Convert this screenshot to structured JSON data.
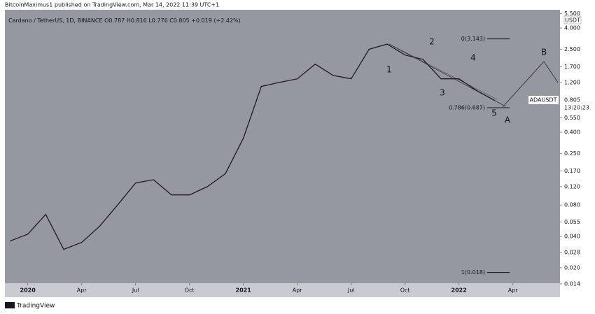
{
  "header": {
    "published": "BitcoinMaximus1 published on TradingView.com, Mar 14, 2022 11:39 UTC+1",
    "footer": "TradingView"
  },
  "chart_data": {
    "type": "line",
    "symbol": "Cardano / TetherUS, 1D, BINANCE",
    "ohlc": [
      {
        "key": "O",
        "value": "0.787"
      },
      {
        "key": "H",
        "value": "0.816"
      },
      {
        "key": "L",
        "value": "0.776"
      },
      {
        "key": "C",
        "value": "0.805"
      }
    ],
    "change": "+0.019 (+2.42%)",
    "currency": "USDT",
    "price_tag": {
      "name": "ADAUSDT",
      "value": "0.805",
      "countdown": "13:20:23"
    },
    "log_scale": true,
    "color": "#1c1c1e",
    "x": [
      "2019-12",
      "2020-01",
      "2020-02",
      "2020-03",
      "2020-04",
      "2020-05",
      "2020-06",
      "2020-07",
      "2020-08",
      "2020-09",
      "2020-10",
      "2020-11",
      "2020-12",
      "2021-01",
      "2021-02",
      "2021-03",
      "2021-04",
      "2021-05",
      "2021-06",
      "2021-07",
      "2021-08",
      "2021-09",
      "2021-10",
      "2021-11",
      "2021-12",
      "2022-01",
      "2022-02",
      "2022-03"
    ],
    "values": [
      0.036,
      0.042,
      0.065,
      0.03,
      0.035,
      0.05,
      0.08,
      0.13,
      0.14,
      0.1,
      0.1,
      0.12,
      0.16,
      0.35,
      1.1,
      1.2,
      1.3,
      1.8,
      1.4,
      1.3,
      2.5,
      2.8,
      2.2,
      2.0,
      1.3,
      1.3,
      1.0,
      0.805
    ],
    "xlim": [
      "2019-12",
      "2022-06"
    ],
    "xticks": [
      {
        "value": "2020-01",
        "label": "2020"
      },
      {
        "value": "2020-04",
        "label": "Apr"
      },
      {
        "value": "2020-07",
        "label": "Jul"
      },
      {
        "value": "2020-10",
        "label": "Oct"
      },
      {
        "value": "2021-01",
        "label": "2021"
      },
      {
        "value": "2021-04",
        "label": "Apr"
      },
      {
        "value": "2021-07",
        "label": "Jul"
      },
      {
        "value": "2021-10",
        "label": "Oct"
      },
      {
        "value": "2022-01",
        "label": "2022"
      },
      {
        "value": "2022-04",
        "label": "Apr"
      }
    ],
    "ylim": [
      0.0142,
      5.98
    ],
    "yticks": [
      {
        "value": 5.5,
        "label": "5.500"
      },
      {
        "value": 4,
        "label": "4.000"
      },
      {
        "value": 2.5,
        "label": "2.500"
      },
      {
        "value": 1.7,
        "label": "1.700"
      },
      {
        "value": 1.2,
        "label": "1.200"
      },
      {
        "value": 0.55,
        "label": "0.550"
      },
      {
        "value": 0.4,
        "label": "0.400"
      },
      {
        "value": 0.25,
        "label": "0.250"
      },
      {
        "value": 0.17,
        "label": "0.170"
      },
      {
        "value": 0.12,
        "label": "0.120"
      },
      {
        "value": 0.08,
        "label": "0.080"
      },
      {
        "value": 0.055,
        "label": "0.055"
      },
      {
        "value": 0.04,
        "label": "0.040"
      },
      {
        "value": 0.028,
        "label": "0.028"
      },
      {
        "value": 0.02,
        "label": "0.020"
      },
      {
        "value": 0.014,
        "label": "0.014"
      }
    ],
    "fib_levels": [
      {
        "label": "0(3.143)",
        "value": 3.143
      },
      {
        "label": "0.786(0.687)",
        "value": 0.687
      },
      {
        "label": "1(0.018)",
        "value": 0.018
      }
    ],
    "wave_labels": [
      "1",
      "2",
      "3",
      "4",
      "5",
      "A",
      "B"
    ],
    "wave_color": "#e8261c"
  }
}
